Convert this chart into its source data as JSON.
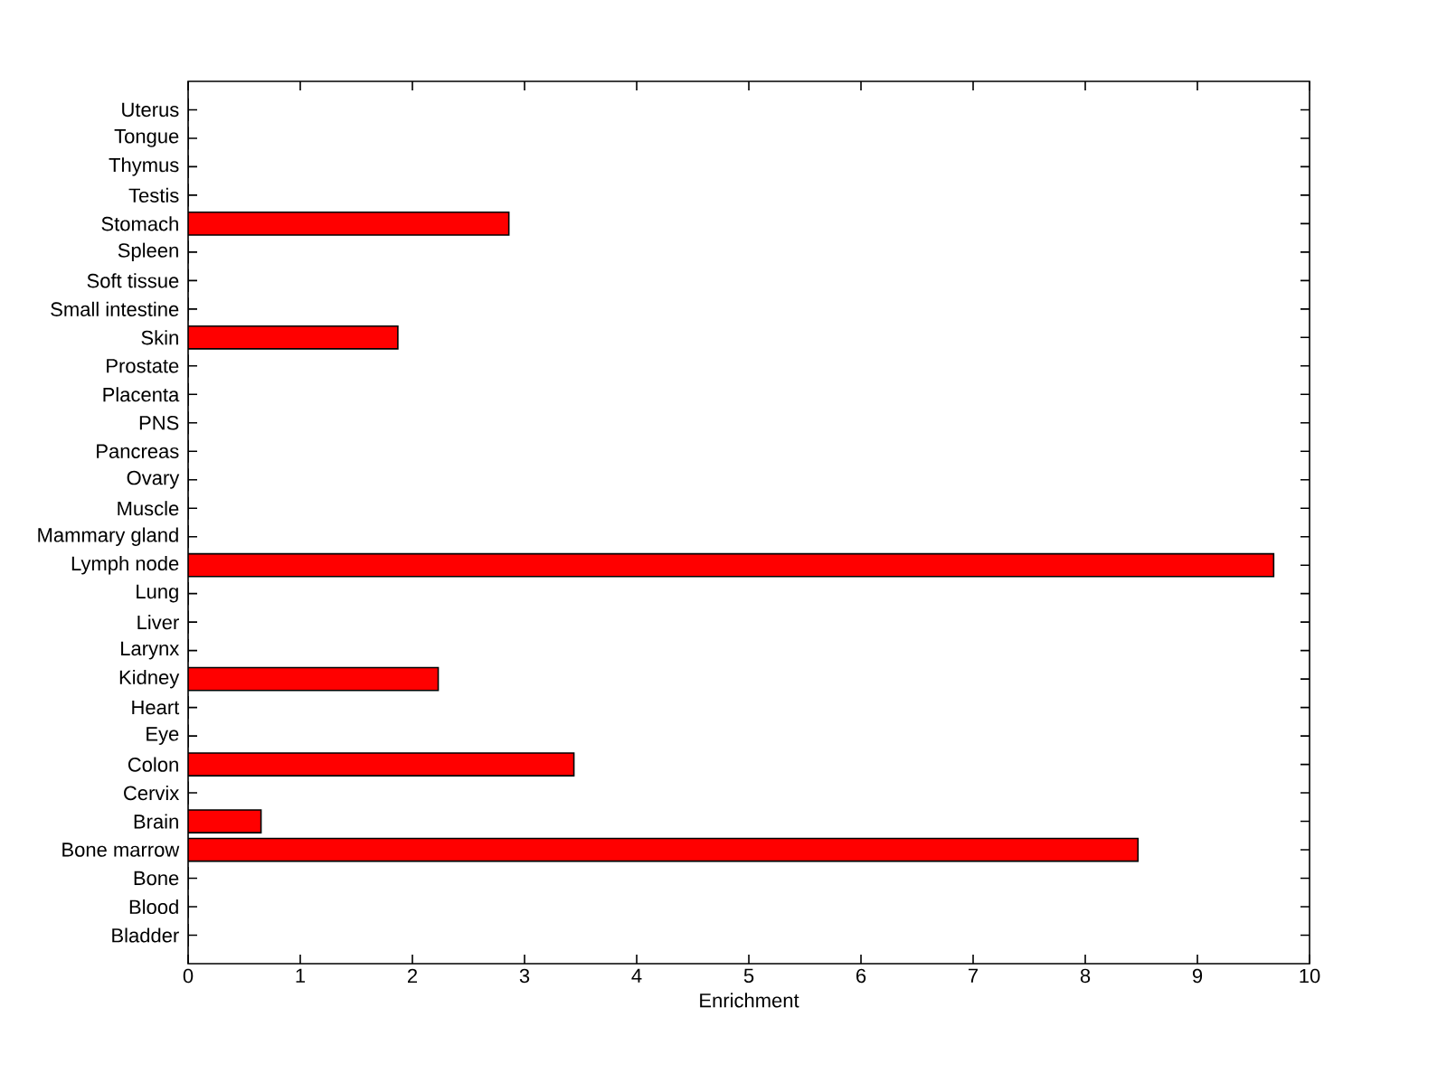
{
  "chart_data": {
    "type": "bar",
    "orientation": "horizontal",
    "xlabel": "Enrichment",
    "categories": [
      "Uterus",
      "Tongue",
      "Thymus",
      "Testis",
      "Stomach",
      "Spleen",
      "Soft tissue",
      "Small intestine",
      "Skin",
      "Prostate",
      "Placenta",
      "PNS",
      "Pancreas",
      "Ovary",
      "Muscle",
      "Mammary gland",
      "Lymph node",
      "Lung",
      "Liver",
      "Larynx",
      "Kidney",
      "Heart",
      "Eye",
      "Colon",
      "Cervix",
      "Brain",
      "Bone marrow",
      "Bone",
      "Blood",
      "Bladder"
    ],
    "values": [
      0,
      0,
      0,
      0,
      2.86,
      0,
      0,
      0,
      1.87,
      0,
      0,
      0,
      0,
      0,
      0,
      0,
      9.68,
      0,
      0,
      0,
      2.23,
      0,
      0,
      3.44,
      0,
      0.65,
      8.47,
      0,
      0,
      0
    ],
    "color": "#ff0000",
    "xlim": [
      0,
      10
    ],
    "xticks": [
      0,
      1,
      2,
      3,
      4,
      5,
      6,
      7,
      8,
      9,
      10
    ],
    "grid": false
  }
}
